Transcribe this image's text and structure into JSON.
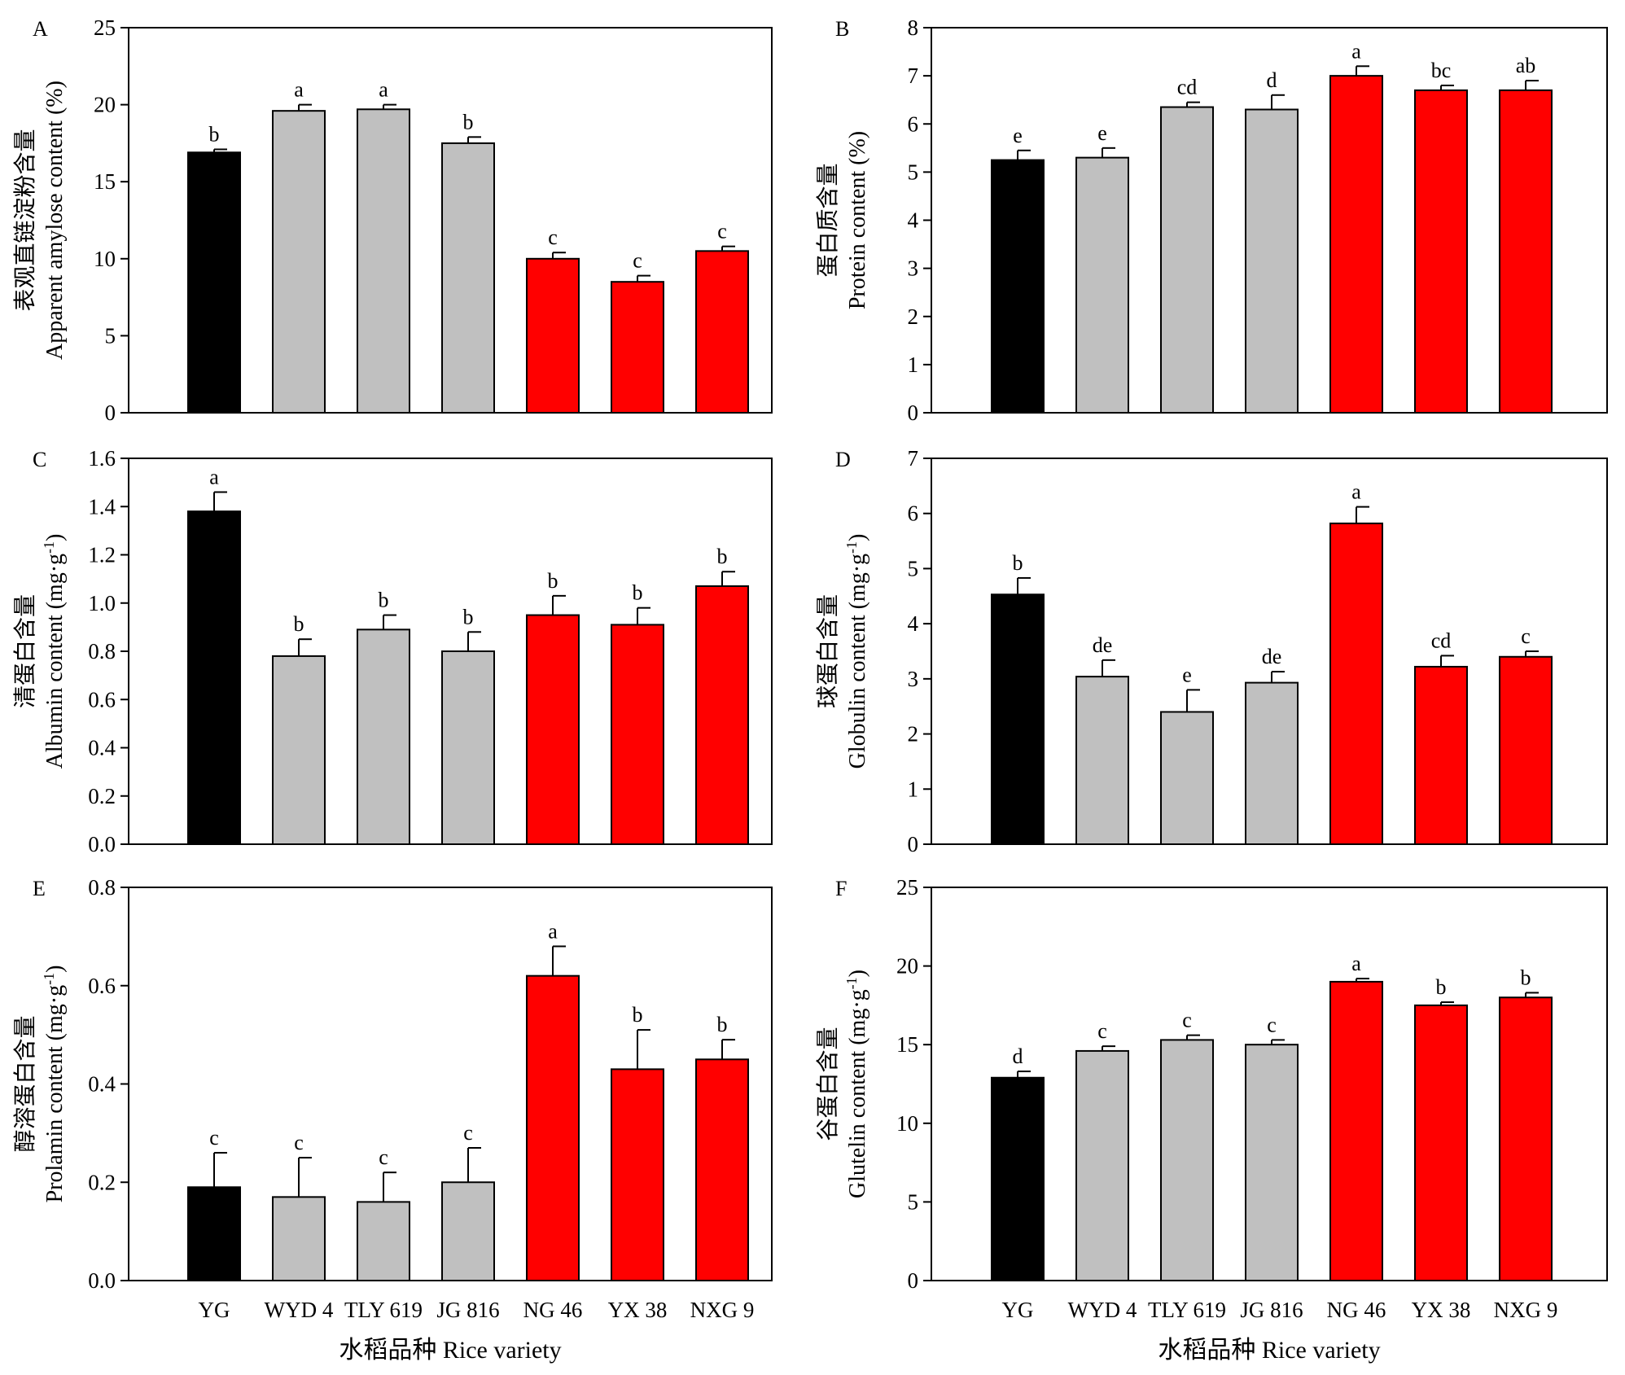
{
  "figure": {
    "x_axis_title": "水稻品种 Rice variety",
    "colors": {
      "YG": "#000000",
      "group_gray": "#c0c0c0",
      "group_red": "#ff0000",
      "axis": "#000000"
    },
    "x_axis_title_shown_on_panels": [
      "E",
      "F"
    ],
    "x_tick_labels_shown_on_panels": [
      "E",
      "F"
    ]
  },
  "chart_data": [
    {
      "panel": "A",
      "type": "bar",
      "categories": [
        "YG",
        "WYD 4",
        "TLY 619",
        "JG 816",
        "NG 46",
        "YX 38",
        "NXG 9"
      ],
      "values": [
        16.9,
        19.6,
        19.7,
        17.5,
        10.0,
        8.5,
        10.5
      ],
      "errors": [
        0.2,
        0.4,
        0.3,
        0.4,
        0.4,
        0.4,
        0.3
      ],
      "significance": [
        "b",
        "a",
        "a",
        "b",
        "c",
        "c",
        "c"
      ],
      "bar_colors": [
        "black",
        "gray",
        "gray",
        "gray",
        "red",
        "red",
        "red"
      ],
      "ylabel_cn": "表观直链淀粉含量",
      "ylabel_en": "Apparent amylose content (%)",
      "ylim": [
        0,
        25
      ],
      "yticks": [
        "0",
        "5",
        "10",
        "15",
        "20",
        "25"
      ]
    },
    {
      "panel": "B",
      "type": "bar",
      "categories": [
        "YG",
        "WYD 4",
        "TLY 619",
        "JG 816",
        "NG 46",
        "YX 38",
        "NXG 9"
      ],
      "values": [
        5.25,
        5.3,
        6.35,
        6.3,
        7.0,
        6.7,
        6.7
      ],
      "errors": [
        0.2,
        0.2,
        0.1,
        0.3,
        0.2,
        0.1,
        0.2
      ],
      "significance": [
        "e",
        "e",
        "cd",
        "d",
        "a",
        "bc",
        "ab"
      ],
      "bar_colors": [
        "black",
        "gray",
        "gray",
        "gray",
        "red",
        "red",
        "red"
      ],
      "ylabel_cn": "蛋白质含量",
      "ylabel_en": "Protein content (%)",
      "ylim": [
        0,
        8
      ],
      "yticks": [
        "0",
        "1",
        "2",
        "3",
        "4",
        "5",
        "6",
        "7",
        "8"
      ]
    },
    {
      "panel": "C",
      "type": "bar",
      "categories": [
        "YG",
        "WYD 4",
        "TLY 619",
        "JG 816",
        "NG 46",
        "YX 38",
        "NXG 9"
      ],
      "values": [
        1.38,
        0.78,
        0.89,
        0.8,
        0.95,
        0.91,
        1.07
      ],
      "errors": [
        0.08,
        0.07,
        0.06,
        0.08,
        0.08,
        0.07,
        0.06
      ],
      "significance": [
        "a",
        "b",
        "b",
        "b",
        "b",
        "b",
        "b"
      ],
      "bar_colors": [
        "black",
        "gray",
        "gray",
        "gray",
        "red",
        "red",
        "red"
      ],
      "ylabel_cn": "清蛋白含量",
      "ylabel_en": "Albumin content (mg·g-1)",
      "ylim": [
        0,
        1.6
      ],
      "yticks": [
        "0.0",
        "0.2",
        "0.4",
        "0.6",
        "0.8",
        "1.0",
        "1.2",
        "1.4",
        "1.6"
      ]
    },
    {
      "panel": "D",
      "type": "bar",
      "categories": [
        "YG",
        "WYD 4",
        "TLY 619",
        "JG 816",
        "NG 46",
        "YX 38",
        "NXG 9"
      ],
      "values": [
        4.53,
        3.04,
        2.4,
        2.93,
        5.82,
        3.22,
        3.4
      ],
      "errors": [
        0.3,
        0.3,
        0.4,
        0.2,
        0.3,
        0.2,
        0.1
      ],
      "significance": [
        "b",
        "de",
        "e",
        "de",
        "a",
        "cd",
        "c"
      ],
      "bar_colors": [
        "black",
        "gray",
        "gray",
        "gray",
        "red",
        "red",
        "red"
      ],
      "ylabel_cn": "球蛋白含量",
      "ylabel_en": "Globulin content (mg·g-1)",
      "ylim": [
        0,
        7
      ],
      "yticks": [
        "0",
        "1",
        "2",
        "3",
        "4",
        "5",
        "6",
        "7"
      ]
    },
    {
      "panel": "E",
      "type": "bar",
      "categories": [
        "YG",
        "WYD 4",
        "TLY 619",
        "JG 816",
        "NG 46",
        "YX 38",
        "NXG 9"
      ],
      "values": [
        0.19,
        0.17,
        0.16,
        0.2,
        0.62,
        0.43,
        0.45
      ],
      "errors": [
        0.07,
        0.08,
        0.06,
        0.07,
        0.06,
        0.08,
        0.04
      ],
      "significance": [
        "c",
        "c",
        "c",
        "c",
        "a",
        "b",
        "b"
      ],
      "bar_colors": [
        "black",
        "gray",
        "gray",
        "gray",
        "red",
        "red",
        "red"
      ],
      "ylabel_cn": "醇溶蛋白含量",
      "ylabel_en": "Prolamin content (mg·g-1)",
      "ylim": [
        0,
        0.8
      ],
      "yticks": [
        "0.0",
        "0.2",
        "0.4",
        "0.6",
        "0.8"
      ]
    },
    {
      "panel": "F",
      "type": "bar",
      "categories": [
        "YG",
        "WYD 4",
        "TLY 619",
        "JG 816",
        "NG 46",
        "YX 38",
        "NXG 9"
      ],
      "values": [
        12.9,
        14.6,
        15.3,
        15.0,
        19.0,
        17.5,
        18.0
      ],
      "errors": [
        0.4,
        0.3,
        0.3,
        0.3,
        0.2,
        0.2,
        0.3
      ],
      "significance": [
        "d",
        "c",
        "c",
        "c",
        "a",
        "b",
        "b"
      ],
      "bar_colors": [
        "black",
        "gray",
        "gray",
        "gray",
        "red",
        "red",
        "red"
      ],
      "ylabel_cn": "谷蛋白含量",
      "ylabel_en": "Glutelin content (mg·g-1)",
      "ylim": [
        0,
        25
      ],
      "yticks": [
        "0",
        "5",
        "10",
        "15",
        "20",
        "25"
      ]
    }
  ]
}
